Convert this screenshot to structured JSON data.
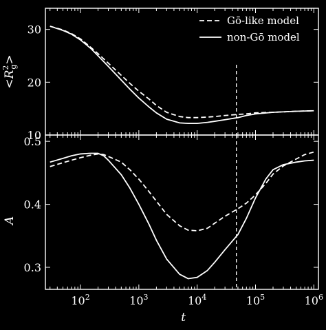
{
  "chart_data": [
    {
      "type": "line",
      "panel": "top",
      "ylabel": "<R_g^2>",
      "x_scale": "log",
      "xlim": [
        25,
        1200000
      ],
      "ylim": [
        10,
        34
      ],
      "ytick_labels": [
        "10",
        "20",
        "30"
      ],
      "ytick_values": [
        10,
        20,
        30
      ],
      "legend": {
        "placement": "top-right",
        "entries": [
          "Gō-like model",
          "non-Gō model"
        ]
      },
      "series": [
        {
          "name": "Gō-like model",
          "style": "dashed",
          "x": [
            30,
            50,
            70,
            100,
            150,
            200,
            300,
            500,
            700,
            1000,
            1500,
            2000,
            3000,
            5000,
            7000,
            10000,
            15000,
            20000,
            30000,
            50000,
            70000,
            100000,
            200000,
            500000,
            1000000
          ],
          "y": [
            30.6,
            29.9,
            29.2,
            28.2,
            26.6,
            25.4,
            23.6,
            21.3,
            19.8,
            18.3,
            16.8,
            15.6,
            14.3,
            13.5,
            13.3,
            13.3,
            13.4,
            13.5,
            13.7,
            13.9,
            14.0,
            14.2,
            14.3,
            14.5,
            14.6
          ]
        },
        {
          "name": "non-Gō model",
          "style": "solid",
          "x": [
            30,
            50,
            70,
            100,
            150,
            200,
            300,
            500,
            700,
            1000,
            1500,
            2000,
            3000,
            5000,
            7000,
            10000,
            15000,
            20000,
            30000,
            50000,
            70000,
            100000,
            200000,
            500000,
            1000000
          ],
          "y": [
            30.6,
            29.8,
            29.1,
            28.0,
            26.4,
            25.0,
            23.0,
            20.4,
            18.7,
            17.0,
            15.3,
            14.2,
            13.0,
            12.3,
            12.2,
            12.2,
            12.4,
            12.6,
            12.9,
            13.3,
            13.7,
            14.0,
            14.3,
            14.5,
            14.6
          ]
        }
      ],
      "annotations": [
        {
          "type": "vertical-dashed-line",
          "x": 47000
        }
      ]
    },
    {
      "type": "line",
      "panel": "bottom",
      "xlabel": "t",
      "ylabel": "A",
      "x_scale": "log",
      "xlim": [
        25,
        1200000
      ],
      "ylim": [
        0.265,
        0.51
      ],
      "xtick_labels": [
        "10^2",
        "10^3",
        "10^4",
        "10^5",
        "10^6"
      ],
      "xtick_values": [
        100,
        1000,
        10000,
        100000,
        1000000
      ],
      "ytick_labels": [
        "0.3",
        "0.4",
        "0.5"
      ],
      "ytick_values": [
        0.3,
        0.4,
        0.5
      ],
      "series": [
        {
          "name": "Gō-like model",
          "style": "dashed",
          "x": [
            30,
            50,
            70,
            100,
            150,
            200,
            250,
            300,
            500,
            700,
            1000,
            1500,
            2000,
            3000,
            5000,
            7000,
            10000,
            15000,
            20000,
            30000,
            50000,
            70000,
            100000,
            150000,
            200000,
            300000,
            500000,
            700000,
            1000000
          ],
          "y": [
            0.46,
            0.466,
            0.47,
            0.474,
            0.478,
            0.48,
            0.479,
            0.476,
            0.467,
            0.455,
            0.44,
            0.42,
            0.405,
            0.384,
            0.366,
            0.359,
            0.358,
            0.362,
            0.37,
            0.381,
            0.393,
            0.402,
            0.415,
            0.433,
            0.448,
            0.461,
            0.472,
            0.479,
            0.483
          ]
        },
        {
          "name": "non-Gō model",
          "style": "solid",
          "x": [
            30,
            50,
            70,
            100,
            150,
            200,
            250,
            300,
            500,
            700,
            1000,
            1500,
            2000,
            3000,
            5000,
            7000,
            10000,
            15000,
            20000,
            30000,
            50000,
            70000,
            100000,
            150000,
            200000,
            300000,
            500000,
            700000,
            1000000
          ],
          "y": [
            0.467,
            0.473,
            0.477,
            0.48,
            0.481,
            0.481,
            0.477,
            0.47,
            0.447,
            0.426,
            0.4,
            0.368,
            0.343,
            0.313,
            0.289,
            0.282,
            0.284,
            0.295,
            0.308,
            0.328,
            0.352,
            0.378,
            0.41,
            0.44,
            0.455,
            0.463,
            0.467,
            0.469,
            0.47
          ]
        }
      ],
      "annotations": [
        {
          "type": "vertical-dashed-line",
          "x": 47000
        }
      ]
    }
  ]
}
